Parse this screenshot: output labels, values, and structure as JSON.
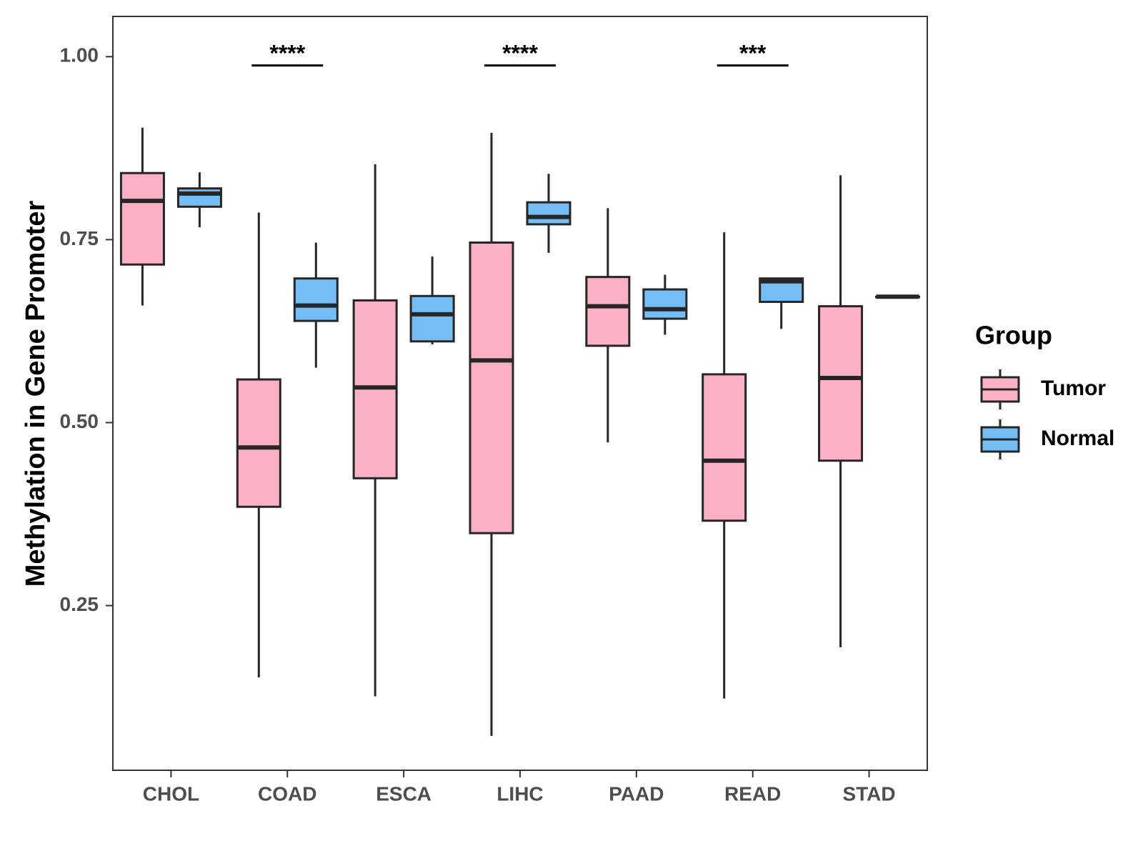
{
  "chart_data": {
    "type": "boxplot",
    "ylabel": "Methylation in Gene Promoter",
    "xlabel": "",
    "ylim": [
      0.025,
      1.055
    ],
    "yticks": [
      0.25,
      0.5,
      0.75,
      1.0
    ],
    "ytick_labels": [
      "0.25",
      "0.50",
      "0.75",
      "1.00"
    ],
    "categories": [
      "CHOL",
      "COAD",
      "ESCA",
      "LIHC",
      "PAAD",
      "READ",
      "STAD"
    ],
    "grid": false,
    "legend": {
      "title": "Group",
      "position": "right",
      "entries": [
        {
          "name": "Tumor",
          "color": "#FBB1C3"
        },
        {
          "name": "Normal",
          "color": "#74BDF5"
        }
      ]
    },
    "series": [
      {
        "name": "Tumor",
        "color": "#FBB1C3",
        "boxes": [
          {
            "category": "CHOL",
            "min": 0.66,
            "q1": 0.716,
            "median": 0.803,
            "q3": 0.841,
            "max": 0.903
          },
          {
            "category": "COAD",
            "min": 0.152,
            "q1": 0.385,
            "median": 0.466,
            "q3": 0.559,
            "max": 0.787
          },
          {
            "category": "ESCA",
            "min": 0.126,
            "q1": 0.424,
            "median": 0.548,
            "q3": 0.667,
            "max": 0.853
          },
          {
            "category": "LIHC",
            "min": 0.072,
            "q1": 0.349,
            "median": 0.585,
            "q3": 0.746,
            "max": 0.896
          },
          {
            "category": "PAAD",
            "min": 0.473,
            "q1": 0.605,
            "median": 0.659,
            "q3": 0.699,
            "max": 0.793
          },
          {
            "category": "READ",
            "min": 0.123,
            "q1": 0.366,
            "median": 0.448,
            "q3": 0.566,
            "max": 0.76
          },
          {
            "category": "STAD",
            "min": 0.193,
            "q1": 0.448,
            "median": 0.561,
            "q3": 0.659,
            "max": 0.838
          }
        ]
      },
      {
        "name": "Normal",
        "color": "#74BDF5",
        "boxes": [
          {
            "category": "CHOL",
            "min": 0.767,
            "q1": 0.795,
            "median": 0.813,
            "q3": 0.82,
            "max": 0.842
          },
          {
            "category": "COAD",
            "min": 0.575,
            "q1": 0.639,
            "median": 0.66,
            "q3": 0.697,
            "max": 0.746
          },
          {
            "category": "ESCA",
            "min": 0.607,
            "q1": 0.611,
            "median": 0.648,
            "q3": 0.673,
            "max": 0.727
          },
          {
            "category": "LIHC",
            "min": 0.732,
            "q1": 0.771,
            "median": 0.781,
            "q3": 0.801,
            "max": 0.84
          },
          {
            "category": "PAAD",
            "min": 0.62,
            "q1": 0.642,
            "median": 0.655,
            "q3": 0.682,
            "max": 0.702
          },
          {
            "category": "READ",
            "min": 0.628,
            "q1": 0.665,
            "median": 0.693,
            "q3": 0.697,
            "max": 0.697
          },
          {
            "category": "STAD",
            "min": 0.672,
            "q1": 0.672,
            "median": 0.672,
            "q3": 0.672,
            "max": 0.672
          }
        ]
      }
    ],
    "significance": [
      {
        "category": "COAD",
        "label": "****",
        "y": 0.988
      },
      {
        "category": "LIHC",
        "label": "****",
        "y": 0.988
      },
      {
        "category": "READ",
        "label": "***",
        "y": 0.988
      }
    ]
  }
}
